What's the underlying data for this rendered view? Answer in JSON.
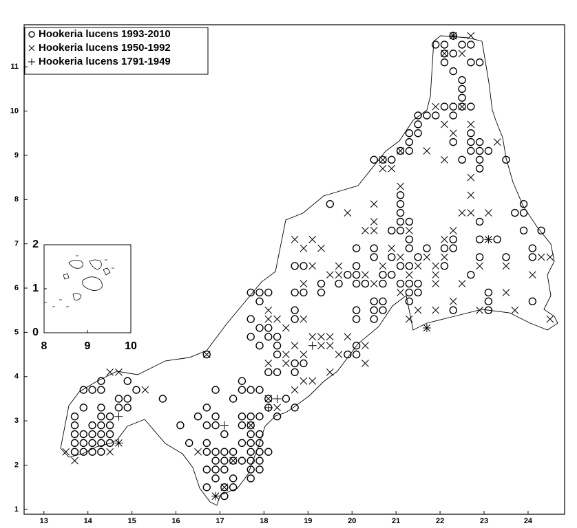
{
  "chart_data": [
    {
      "type": "scatter",
      "legend": "upper left",
      "xlim": [
        12.55,
        24.83
      ],
      "ylim": [
        0.89,
        11.95
      ],
      "xticks": [
        13,
        14,
        15,
        16,
        17,
        18,
        19,
        20,
        21,
        22,
        23,
        24
      ],
      "yticks": [
        1,
        2,
        3,
        4,
        5,
        6,
        7,
        8,
        9,
        10,
        11
      ],
      "series": [
        {
          "name": "Hookeria lucens 1993-2010",
          "marker": "o",
          "color": "#000000",
          "x": [
            21.9,
            22.1,
            22.3,
            22.5,
            22.7,
            22.1,
            22.3,
            22.1,
            22.3,
            22.7,
            22.9,
            22.5,
            22.5,
            22.5,
            22.1,
            22.3,
            22.7,
            22.3,
            22.5,
            21.5,
            21.7,
            21.9,
            21.5,
            21.5,
            21.3,
            21.3,
            21.1,
            21.3,
            20.9,
            20.7,
            20.5,
            22.3,
            22.7,
            22.7,
            22.9,
            22.7,
            22.9,
            23.1,
            22.9,
            22.9,
            22.5,
            23.5,
            19.5,
            21.1,
            21.1,
            21.1,
            20.9,
            21.1,
            21.1,
            21.3,
            21.3,
            21.3,
            21.3,
            21.5,
            21.7,
            22.1,
            22.3,
            22.3,
            22.1,
            22.9,
            22.9,
            22.9,
            23.3,
            23.7,
            23.9,
            23.9,
            24.3,
            23.9,
            24.1,
            24.1,
            23.5,
            22.7,
            20.1,
            20.1,
            20.1,
            20.1,
            19.9,
            20.5,
            20.5,
            20.9,
            20.7,
            20.7,
            20.9,
            21.1,
            21.1,
            21.3,
            21.3,
            21.3,
            21.5,
            21.5,
            20.3,
            20.5,
            20.7,
            20.5,
            20.7,
            20.5,
            20.1,
            20.1,
            20.1,
            20.1,
            19.9,
            19.7,
            19.3,
            19.3,
            18.9,
            18.7,
            18.7,
            18.7,
            18.7,
            18.9,
            17.7,
            17.9,
            18.1,
            17.9,
            17.7,
            17.7,
            17.9,
            18.1,
            18.1,
            17.9,
            18.3,
            18.3,
            18.3,
            18.1,
            18.3,
            18.7,
            18.9,
            18.7,
            22.3,
            23.1,
            23.1,
            23.1,
            24.1,
            16.7,
            17.5,
            17.5,
            17.3,
            16.9,
            17.7,
            17.9,
            18.5,
            18.7,
            18.1,
            18.1,
            18.3,
            15.7,
            16.5,
            16.1,
            16.3,
            16.7,
            16.7,
            16.9,
            16.9,
            17.1,
            16.7,
            16.7,
            16.9,
            17.1,
            16.7,
            16.9,
            16.9,
            17.1,
            16.9,
            17.1,
            16.7,
            17.1,
            17.1,
            17.3,
            17.3,
            17.3,
            17.5,
            17.3,
            17.5,
            17.5,
            17.5,
            17.7,
            17.9,
            17.7,
            17.7,
            17.9,
            17.7,
            17.9,
            17.7,
            17.9,
            17.7,
            17.9,
            17.7,
            17.9,
            17.7,
            18.1,
            13.7,
            13.7,
            13.7,
            13.7,
            13.7,
            13.9,
            13.9,
            13.9,
            13.9,
            13.9,
            14.1,
            14.1,
            14.1,
            14.1,
            14.1,
            14.3,
            14.3,
            14.3,
            14.3,
            14.3,
            14.3,
            14.3,
            14.3,
            14.5,
            14.5,
            14.5,
            14.5,
            14.7,
            14.7,
            14.9,
            14.9,
            14.9,
            15.1
          ],
          "values": [
            11.5,
            11.5,
            11.7,
            11.5,
            11.5,
            11.3,
            11.3,
            11.1,
            10.9,
            11.1,
            11.1,
            10.7,
            10.5,
            10.3,
            10.1,
            10.1,
            10.1,
            9.9,
            10.1,
            9.9,
            9.9,
            9.9,
            9.7,
            9.5,
            9.5,
            9.3,
            9.1,
            9.1,
            8.9,
            8.9,
            8.9,
            9.3,
            9.5,
            9.3,
            9.3,
            9.1,
            9.1,
            9.1,
            8.9,
            8.7,
            8.9,
            8.9,
            7.9,
            8.1,
            7.9,
            7.7,
            7.3,
            7.5,
            7.3,
            7.5,
            7.1,
            6.9,
            6.5,
            6.7,
            6.9,
            6.9,
            6.9,
            7.1,
            6.5,
            7.5,
            7.1,
            6.7,
            7.1,
            7.7,
            7.9,
            7.7,
            7.3,
            7.3,
            6.9,
            6.7,
            6.7,
            6.3,
            6.9,
            6.5,
            6.3,
            6.1,
            6.3,
            6.9,
            6.7,
            6.7,
            6.3,
            6.1,
            6.3,
            6.5,
            6.1,
            6.1,
            5.7,
            5.9,
            5.9,
            6.1,
            6.1,
            5.7,
            5.7,
            5.5,
            5.5,
            5.3,
            5.5,
            5.3,
            4.7,
            4.5,
            4.5,
            6.1,
            6.1,
            5.9,
            6.5,
            6.5,
            5.9,
            5.5,
            5.3,
            5.9,
            5.9,
            5.9,
            5.9,
            5.7,
            5.3,
            4.9,
            5.1,
            5.1,
            4.9,
            4.7,
            4.9,
            4.7,
            4.5,
            4.1,
            4.1,
            4.3,
            4.3,
            4.1,
            5.5,
            5.9,
            5.7,
            5.5,
            5.7,
            4.5,
            3.9,
            3.7,
            3.5,
            3.7,
            3.7,
            3.7,
            3.5,
            3.3,
            3.5,
            3.3,
            3.1,
            3.5,
            3.1,
            2.9,
            2.5,
            3.3,
            2.9,
            3.1,
            2.9,
            2.7,
            2.5,
            2.3,
            2.3,
            2.3,
            1.9,
            2.1,
            1.9,
            2.1,
            1.7,
            1.9,
            1.5,
            1.5,
            1.3,
            1.5,
            1.7,
            2.1,
            2.1,
            2.3,
            2.5,
            2.9,
            3.1,
            3.1,
            3.1,
            2.9,
            2.7,
            2.7,
            2.5,
            2.5,
            2.3,
            2.3,
            2.1,
            2.1,
            1.9,
            1.9,
            1.7,
            2.3,
            3.1,
            2.9,
            2.7,
            2.5,
            2.3,
            2.7,
            2.5,
            2.3,
            3.3,
            3.7,
            3.7,
            2.9,
            2.7,
            2.5,
            2.3,
            3.9,
            3.7,
            3.3,
            3.1,
            2.9,
            2.7,
            2.5,
            2.3,
            3.1,
            2.9,
            2.7,
            2.5,
            3.5,
            3.3,
            3.9,
            3.5,
            3.3,
            3.7
          ]
        },
        {
          "name": "Hookeria lucens 1950-1992",
          "marker": "x",
          "color": "#000000",
          "x": [
            22.3,
            22.7,
            22.1,
            22.5,
            21.9,
            22.1,
            22.3,
            22.5,
            22.7,
            21.1,
            20.7,
            20.9,
            20.7,
            21.7,
            22.1,
            22.7,
            22.7,
            22.5,
            22.7,
            23.1,
            23.3,
            21.1,
            20.5,
            20.5,
            20.5,
            20.3,
            19.9,
            21.3,
            22.3,
            22.1,
            23.1,
            23.5,
            24.3,
            24.1,
            24.5,
            23.5,
            23.7,
            24.5,
            22.9,
            22.3,
            21.9,
            21.7,
            21.3,
            20.3,
            20.3,
            19.9,
            19.7,
            19.1,
            19.3,
            19.5,
            19.5,
            19.3,
            18.9,
            18.7,
            18.5,
            18.5,
            18.9,
            19.1,
            18.7,
            19.5,
            18.7,
            19.1,
            18.9,
            19.3,
            19.7,
            19.5,
            19.7,
            19.1,
            20.3,
            20.5,
            20.7,
            20.9,
            21.1,
            21.3,
            21.5,
            21.7,
            21.9,
            21.9,
            22.1,
            22.5,
            22.9,
            21.1,
            21.5,
            21.9,
            18.1,
            18.1,
            18.3,
            18.5,
            18.9,
            18.9,
            18.1,
            14.5,
            14.7,
            15.3,
            13.5,
            13.7,
            14.7,
            14.5,
            16.5,
            16.7,
            16.9,
            17.1,
            17.3,
            18.1,
            18.3,
            17.7
          ],
          "values": [
            11.7,
            11.7,
            11.3,
            11.3,
            10.1,
            9.7,
            9.5,
            10.1,
            9.7,
            9.1,
            8.9,
            8.7,
            8.7,
            9.1,
            8.9,
            8.5,
            8.1,
            7.7,
            7.7,
            7.7,
            9.3,
            8.3,
            7.9,
            7.5,
            7.3,
            7.3,
            7.7,
            7.3,
            7.3,
            7.1,
            7.1,
            6.5,
            6.7,
            6.3,
            6.7,
            5.9,
            5.5,
            5.3,
            5.5,
            5.7,
            5.5,
            5.1,
            5.3,
            4.7,
            4.3,
            4.9,
            4.5,
            4.9,
            4.9,
            4.9,
            4.7,
            4.7,
            4.5,
            4.7,
            4.5,
            4.3,
            3.9,
            3.9,
            3.7,
            4.1,
            7.1,
            7.1,
            6.9,
            6.9,
            6.5,
            6.3,
            6.3,
            6.5,
            6.3,
            6.1,
            6.5,
            6.9,
            6.7,
            6.3,
            6.5,
            6.7,
            6.5,
            6.3,
            6.7,
            6.1,
            6.5,
            5.9,
            5.5,
            6.1,
            5.5,
            5.3,
            5.3,
            5.1,
            6.1,
            5.3,
            4.3,
            4.1,
            4.1,
            3.7,
            2.3,
            2.1,
            2.5,
            2.3,
            2.3,
            4.5,
            1.3,
            1.5,
            2.1,
            3.5,
            3.3,
            2.9
          ]
        },
        {
          "name": "Hookeria lucens 1791-1949",
          "marker": "+",
          "color": "#000000",
          "x": [
            14.7,
            14.7,
            16.9,
            17.1,
            18.1,
            18.3,
            19.1,
            22.3,
            21.7,
            23.1
          ],
          "values": [
            2.5,
            3.1,
            1.3,
            2.9,
            3.3,
            3.5,
            4.7,
            11.7,
            5.1,
            7.1
          ]
        }
      ]
    },
    {
      "type": "inset",
      "xlim": [
        8,
        10
      ],
      "ylim": [
        0,
        2
      ],
      "xticks": [
        8,
        9,
        10
      ],
      "yticks": [
        0,
        1,
        2
      ]
    }
  ]
}
